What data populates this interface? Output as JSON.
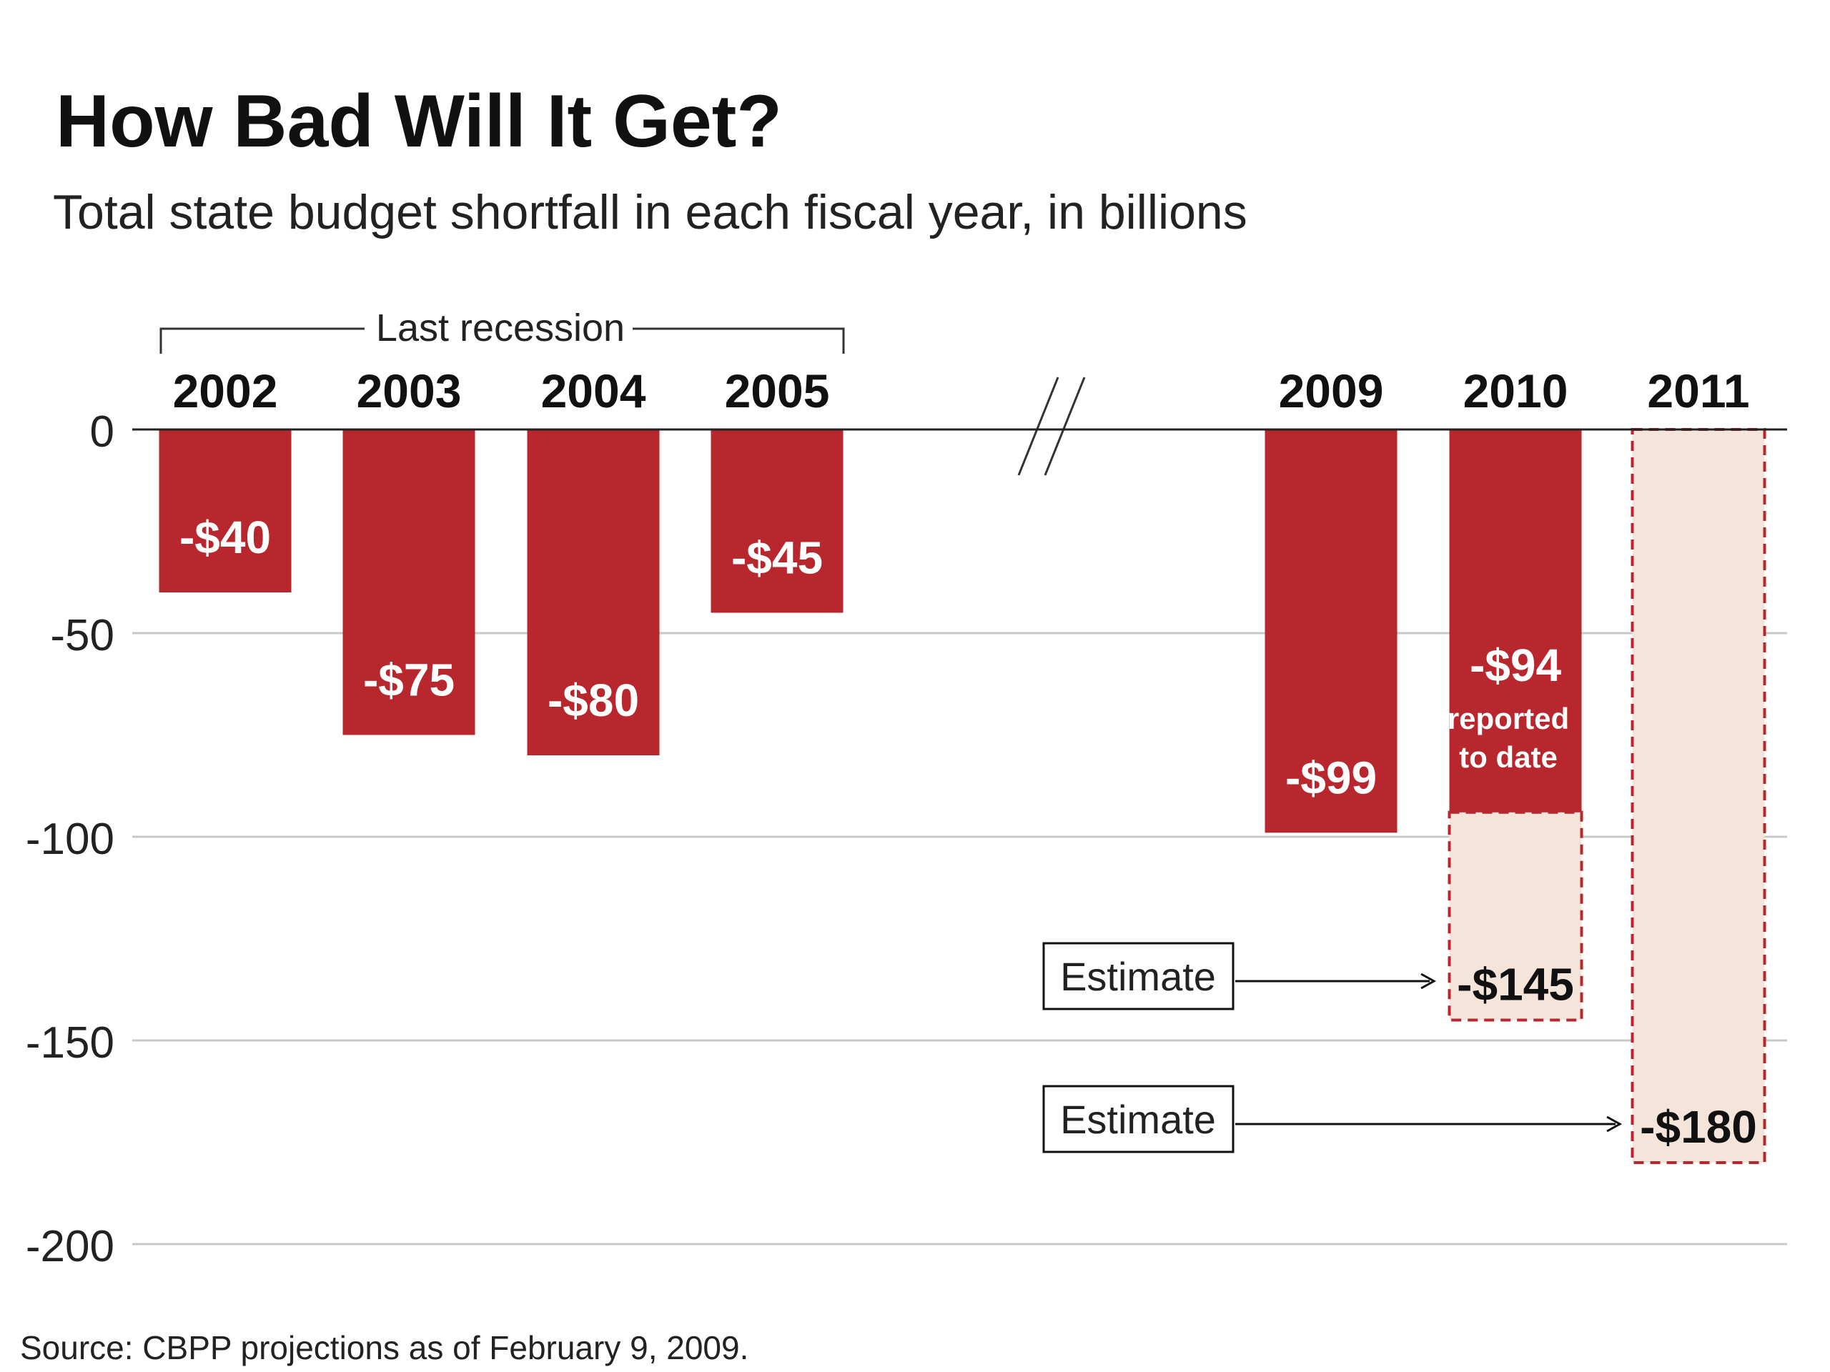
{
  "chart_data": {
    "type": "bar",
    "title": "How Bad Will It Get?",
    "subtitle": "Total state budget shortfall in each fiscal year, in billions",
    "source": "Source: CBPP projections as of February 9, 2009.",
    "categories": [
      "2002",
      "2003",
      "2004",
      "2005",
      "2009",
      "2010",
      "2011"
    ],
    "ylim": [
      -200,
      0
    ],
    "yticks": [
      0,
      -50,
      -100,
      -150,
      -200
    ],
    "ytick_labels": [
      "0",
      "-50",
      "-100",
      "-150",
      "-200"
    ],
    "grid": true,
    "series": [
      {
        "values": [
          -40,
          -75,
          -80,
          -45,
          -99,
          -94,
          null
        ],
        "labels": [
          "-$40",
          "-$75",
          "-$80",
          "-$45",
          "-$99",
          "-$94",
          ""
        ]
      },
      {
        "values": [
          null,
          null,
          null,
          null,
          null,
          -145,
          -180
        ],
        "labels": [
          "",
          "",
          "",
          "",
          "",
          "-$145",
          "-$180"
        ]
      }
    ],
    "annotations": {
      "bracket_label": "Last recession",
      "reported_note_line1": "reported",
      "reported_note_line2": "to date",
      "estimate_label_1": "Estimate",
      "estimate_label_2": "Estimate"
    },
    "colors": {
      "actual": "#b8272d",
      "estimate_fill": "#f5e4d9",
      "estimate_border": "#b8272d",
      "grid": "#c8c8c8",
      "axis": "#222222"
    }
  }
}
